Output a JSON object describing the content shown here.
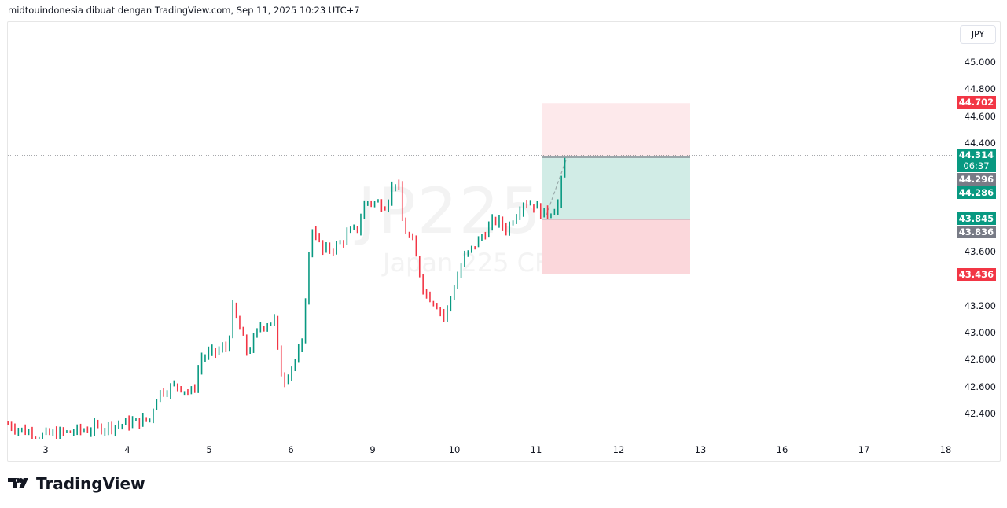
{
  "header": {
    "attribution": "midtouindonesia dibuat dengan TradingView.com, Sep 11, 2025 10:23 UTC+7"
  },
  "watermark": {
    "symbol": "JP225, 30",
    "description": "Japan 225 CFD"
  },
  "currency_button": "JPY",
  "logo": {
    "text": "TradingView"
  },
  "colors": {
    "up": "#089981",
    "down": "#f23645",
    "neutral_tag": "#787b86",
    "target_zone": "#d1ece6",
    "stop_zone": "#fbd7db",
    "upper_zone": "#fde9eb"
  },
  "chart_data": {
    "type": "candlestick",
    "title": "",
    "ylim": [
      42.22,
      45.25
    ],
    "y_ticks": [
      "45.000",
      "44.800",
      "44.600",
      "44.400",
      "43.600",
      "43.200",
      "43.000",
      "42.800",
      "42.600",
      "42.400"
    ],
    "x_ticks": [
      "3",
      "4",
      "5",
      "6",
      "9",
      "10",
      "11",
      "12",
      "13",
      "16",
      "17",
      "18"
    ],
    "grid": false,
    "price_path": [
      [
        -0.46,
        42.33
      ],
      [
        -0.1,
        42.24
      ],
      [
        0.3,
        42.27
      ],
      [
        1.27,
        42.36
      ],
      [
        1.37,
        42.56
      ],
      [
        1.61,
        42.62
      ],
      [
        1.8,
        42.55
      ],
      [
        1.9,
        42.82
      ],
      [
        2.23,
        42.9
      ],
      [
        2.28,
        43.2
      ],
      [
        2.47,
        42.85
      ],
      [
        2.62,
        43.05
      ],
      [
        2.81,
        43.11
      ],
      [
        2.83,
        42.9
      ],
      [
        2.9,
        42.64
      ],
      [
        3.14,
        42.9
      ],
      [
        3.19,
        43.4
      ],
      [
        3.27,
        43.81
      ],
      [
        3.38,
        43.6
      ],
      [
        3.58,
        43.65
      ],
      [
        3.67,
        43.72
      ],
      [
        3.82,
        43.78
      ],
      [
        3.91,
        43.98
      ],
      [
        4.15,
        43.95
      ],
      [
        4.3,
        44.16
      ],
      [
        4.37,
        43.79
      ],
      [
        4.49,
        43.66
      ],
      [
        4.63,
        43.31
      ],
      [
        4.78,
        43.22
      ],
      [
        4.88,
        43.11
      ],
      [
        4.97,
        43.3
      ],
      [
        5.11,
        43.55
      ],
      [
        5.31,
        43.7
      ],
      [
        5.5,
        43.84
      ],
      [
        5.64,
        43.77
      ],
      [
        5.84,
        43.98
      ],
      [
        5.98,
        43.95
      ],
      [
        6.08,
        43.88
      ],
      [
        6.17,
        43.9
      ],
      [
        6.27,
        43.96
      ],
      [
        6.34,
        44.24
      ],
      [
        6.39,
        44.31
      ]
    ],
    "last_price": "44.314",
    "countdown": "06:37"
  },
  "price_tags": [
    {
      "value": "44.702",
      "kind": "target"
    },
    {
      "value": "44.296",
      "kind": "neutral"
    },
    {
      "value": "44.286",
      "kind": "up"
    },
    {
      "value": "43.845",
      "kind": "entry"
    },
    {
      "value": "43.836",
      "kind": "neutral"
    },
    {
      "value": "43.436",
      "kind": "stop"
    }
  ],
  "position": {
    "target": 44.702,
    "entry": 43.845,
    "stop": 43.436,
    "current": 44.314
  }
}
